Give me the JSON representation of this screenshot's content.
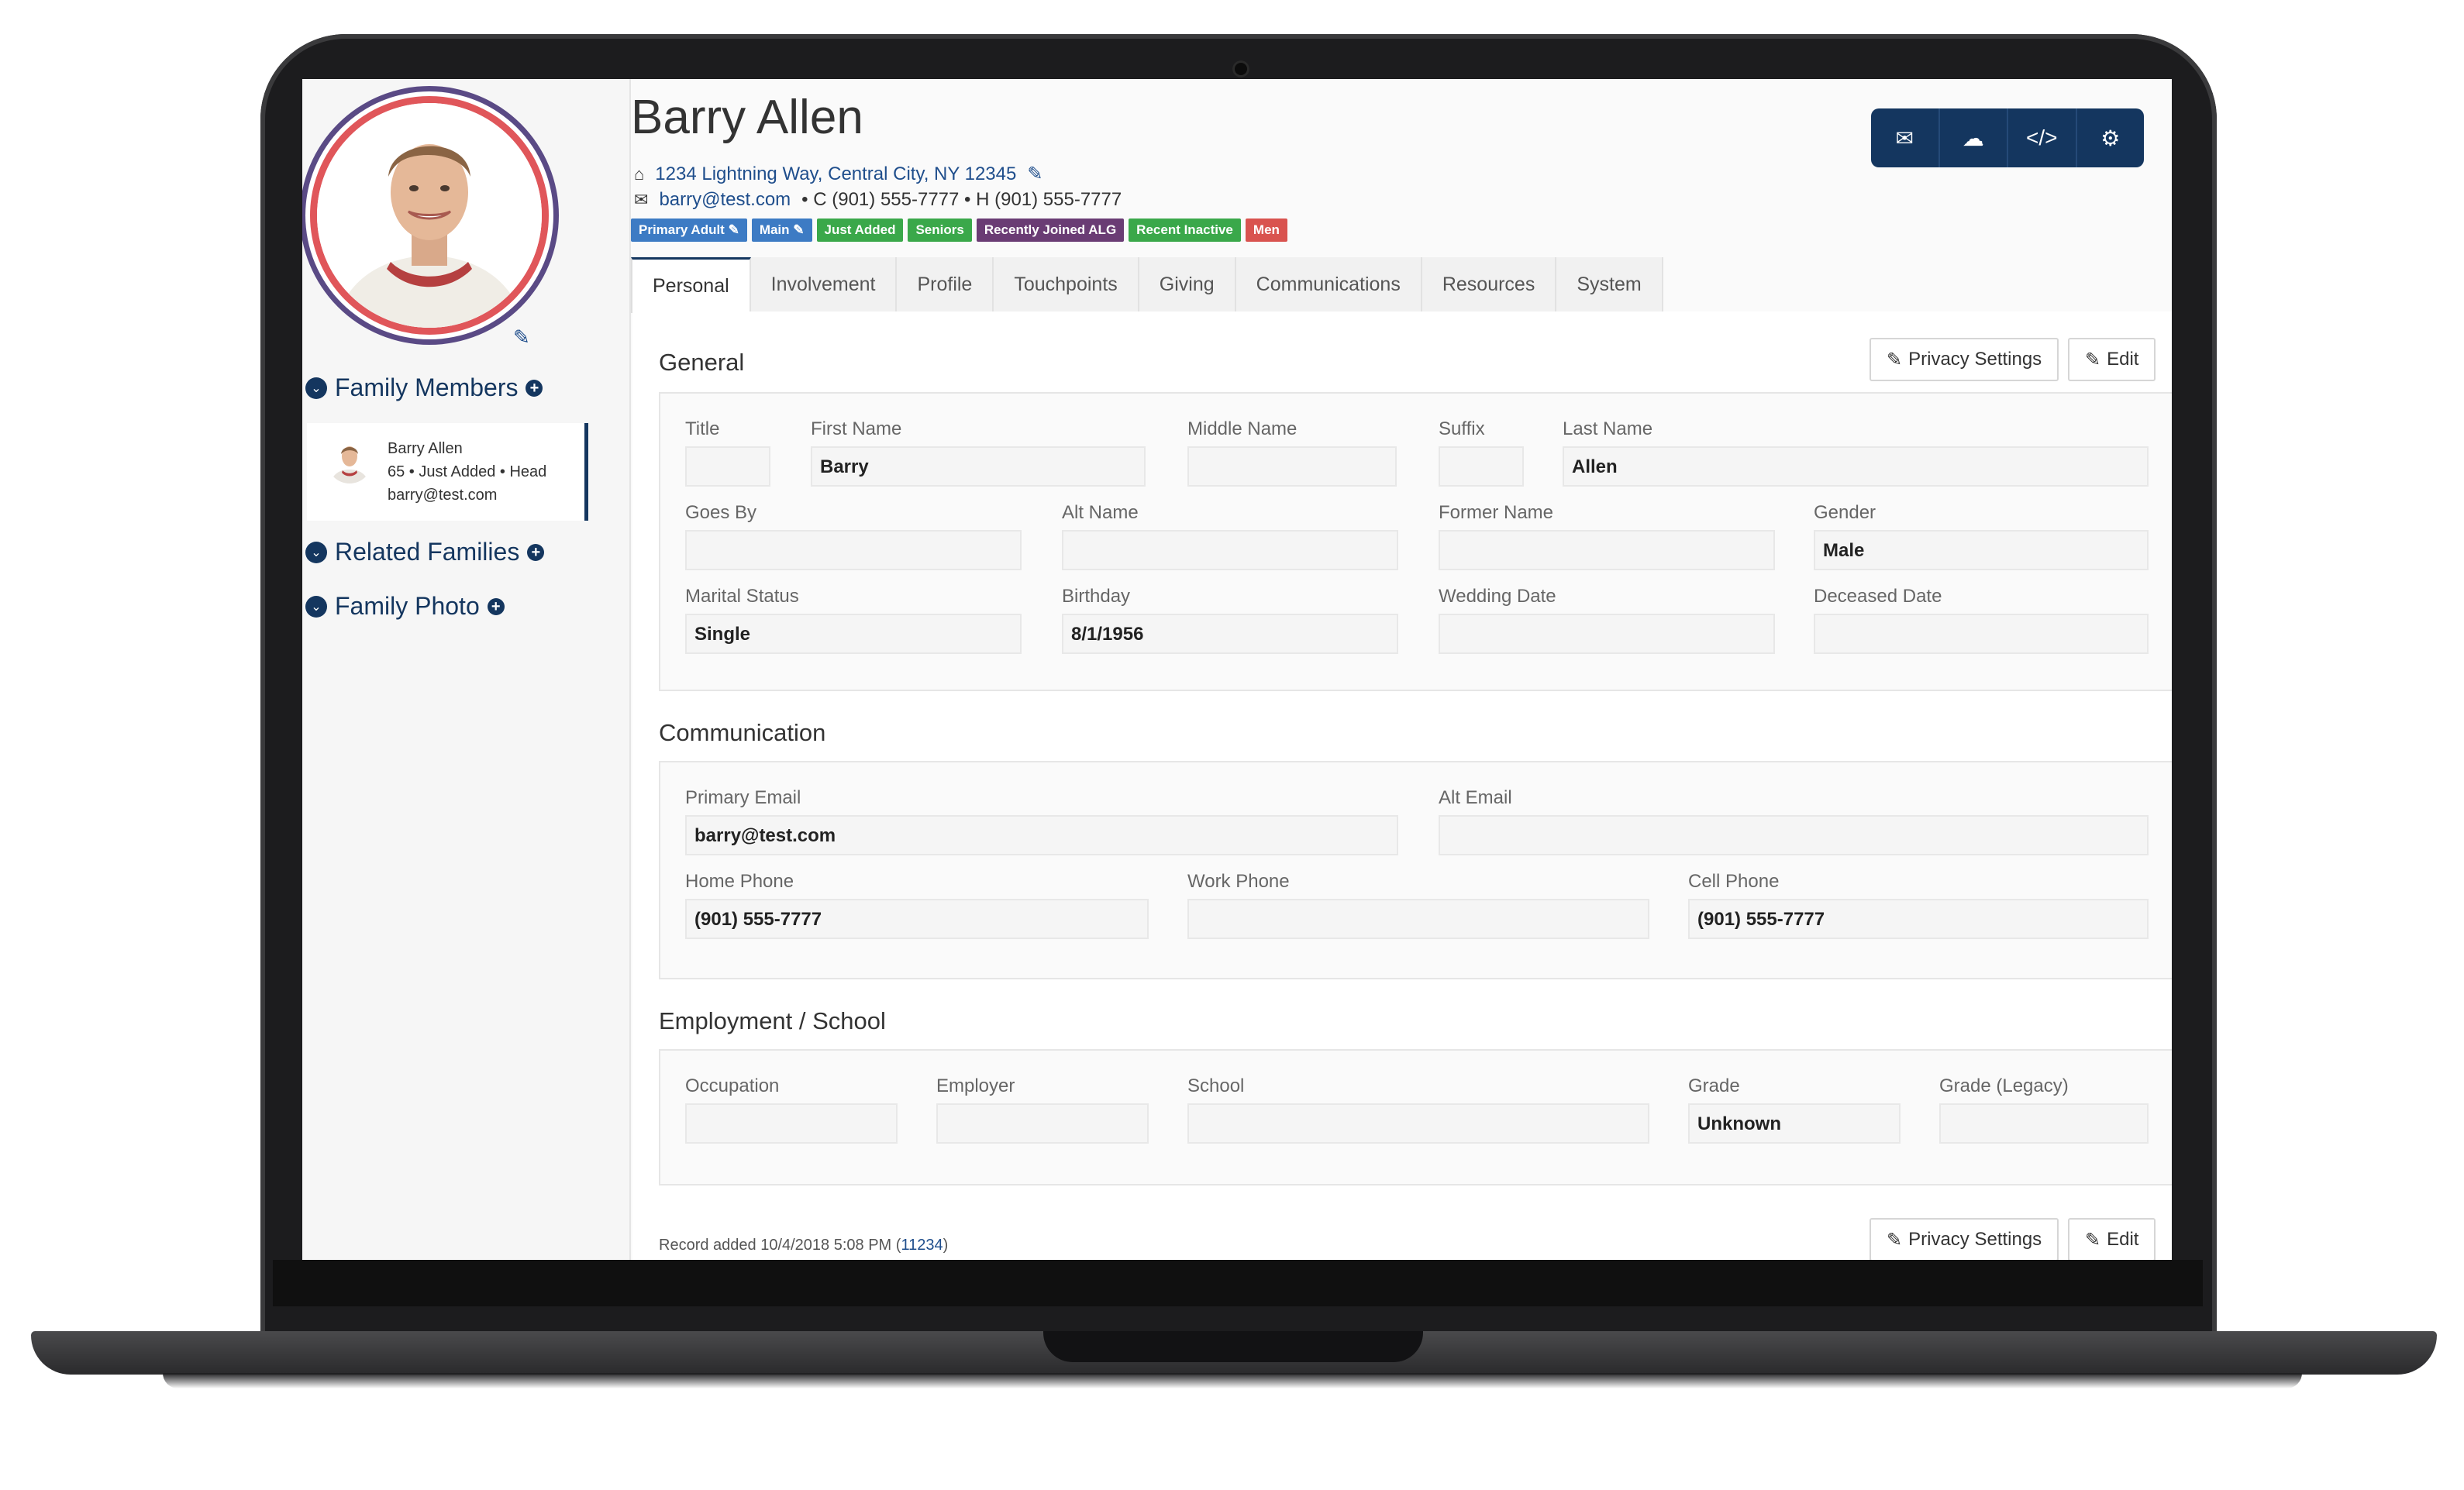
{
  "person": {
    "name": "Barry Allen",
    "address": "1234 Lightning Way, Central City, NY 12345",
    "email": "barry@test.com",
    "phones": "• C (901) 555-7777 • H (901) 555-7777"
  },
  "tags": [
    {
      "label": "Primary Adult ✎",
      "color": "#3d7bc4"
    },
    {
      "label": "Main ✎",
      "color": "#3d7bc4"
    },
    {
      "label": "Just Added",
      "color": "#3aa84a"
    },
    {
      "label": "Seniors",
      "color": "#3aa84a"
    },
    {
      "label": "Recently Joined ALG",
      "color": "#6a3c74"
    },
    {
      "label": "Recent Inactive",
      "color": "#3aa84a"
    },
    {
      "label": "Men",
      "color": "#d9534f"
    }
  ],
  "sidebar": {
    "family_members": "Family Members",
    "related_families": "Related Families",
    "family_photo": "Family Photo",
    "member": {
      "name": "Barry Allen",
      "meta": "65 • Just Added • Head",
      "email": "barry@test.com"
    }
  },
  "toolbar": {
    "icons": [
      "envelope-icon",
      "cloud-download-icon",
      "code-icon",
      "gear-icon"
    ]
  },
  "tabs": [
    "Personal",
    "Involvement",
    "Profile",
    "Touchpoints",
    "Giving",
    "Communications",
    "Resources",
    "System"
  ],
  "buttons": {
    "privacy": "Privacy Settings",
    "edit": "Edit"
  },
  "general": {
    "title": "General",
    "fields": {
      "title": {
        "label": "Title",
        "value": ""
      },
      "first_name": {
        "label": "First Name",
        "value": "Barry"
      },
      "middle_name": {
        "label": "Middle Name",
        "value": ""
      },
      "suffix": {
        "label": "Suffix",
        "value": ""
      },
      "last_name": {
        "label": "Last Name",
        "value": "Allen"
      },
      "goes_by": {
        "label": "Goes By",
        "value": ""
      },
      "alt_name": {
        "label": "Alt Name",
        "value": ""
      },
      "former_name": {
        "label": "Former Name",
        "value": ""
      },
      "gender": {
        "label": "Gender",
        "value": "Male"
      },
      "marital_status": {
        "label": "Marital Status",
        "value": "Single"
      },
      "birthday": {
        "label": "Birthday",
        "value": "8/1/1956"
      },
      "wedding_date": {
        "label": "Wedding Date",
        "value": ""
      },
      "deceased_date": {
        "label": "Deceased Date",
        "value": ""
      }
    }
  },
  "communication": {
    "title": "Communication",
    "fields": {
      "primary_email": {
        "label": "Primary Email",
        "value": "barry@test.com"
      },
      "alt_email": {
        "label": "Alt Email",
        "value": ""
      },
      "home_phone": {
        "label": "Home Phone",
        "value": "(901) 555-7777"
      },
      "work_phone": {
        "label": "Work Phone",
        "value": ""
      },
      "cell_phone": {
        "label": "Cell Phone",
        "value": "(901) 555-7777"
      }
    }
  },
  "employment": {
    "title": "Employment / School",
    "fields": {
      "occupation": {
        "label": "Occupation",
        "value": ""
      },
      "employer": {
        "label": "Employer",
        "value": ""
      },
      "school": {
        "label": "School",
        "value": ""
      },
      "grade": {
        "label": "Grade",
        "value": "Unknown"
      },
      "grade_legacy": {
        "label": "Grade (Legacy)",
        "value": ""
      }
    }
  },
  "footer": {
    "record_added": "Record added 10/4/2018 5:08 PM (",
    "record_id": "11234",
    "close": ")"
  }
}
